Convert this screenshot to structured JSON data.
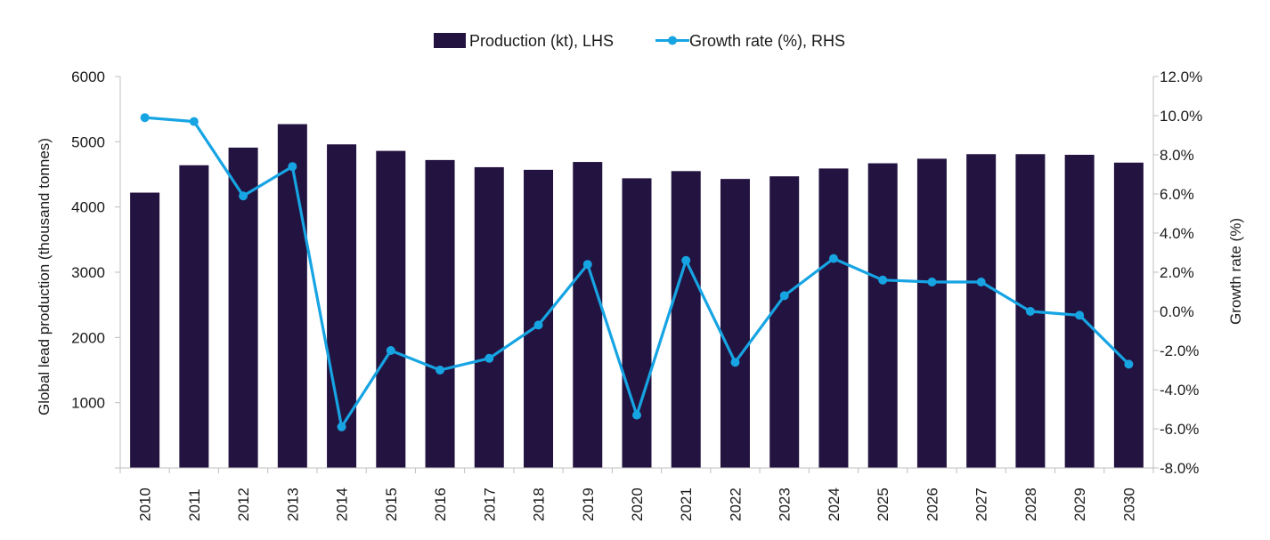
{
  "chart_data": {
    "type": "bar+line",
    "categories": [
      "2010",
      "2011",
      "2012",
      "2013",
      "2014",
      "2015",
      "2016",
      "2017",
      "2018",
      "2019",
      "2020",
      "2021",
      "2022",
      "2023",
      "2024",
      "2025",
      "2026",
      "2027",
      "2028",
      "2029",
      "2030"
    ],
    "series": [
      {
        "name": "Production (kt), LHS",
        "type": "bar",
        "axis": "left",
        "color": "#231340",
        "values": [
          4220,
          4640,
          4910,
          5270,
          4960,
          4860,
          4720,
          4610,
          4570,
          4690,
          4440,
          4550,
          4430,
          4470,
          4590,
          4670,
          4740,
          4810,
          4810,
          4800,
          4680
        ]
      },
      {
        "name": "Growth rate (%), RHS",
        "type": "line",
        "axis": "right",
        "color": "#16a4e3",
        "values": [
          9.9,
          9.7,
          5.9,
          7.4,
          -5.9,
          -2.0,
          -3.0,
          -2.4,
          -0.7,
          2.4,
          -5.3,
          2.6,
          -2.6,
          0.8,
          2.7,
          1.6,
          1.5,
          1.5,
          0.0,
          -0.2,
          -2.7
        ]
      }
    ],
    "y_left": {
      "label": "Global lead production (thousand tonnes)",
      "ylim": [
        0,
        6000
      ],
      "ticks": [
        1000,
        2000,
        3000,
        4000,
        5000,
        6000
      ]
    },
    "y_right": {
      "label": "Growth rate (%)",
      "ylim": [
        -8,
        12
      ],
      "ticks": [
        "-8.0%",
        "-6.0%",
        "-4.0%",
        "-2.0%",
        "0.0%",
        "2.0%",
        "4.0%",
        "6.0%",
        "8.0%",
        "10.0%",
        "12.0%"
      ]
    },
    "legend": {
      "position": "top-center",
      "bar_label": "Production (kt), LHS",
      "line_label": "Growth rate (%), RHS"
    },
    "grid": false
  }
}
